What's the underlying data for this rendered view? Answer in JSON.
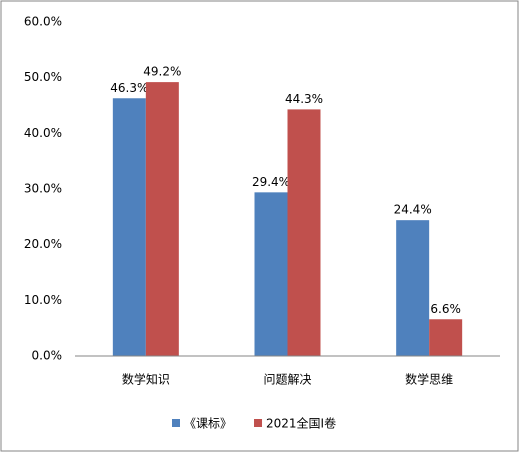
{
  "chart_data": {
    "type": "bar",
    "categories": [
      "数学知识",
      "问题解决",
      "数学思维"
    ],
    "series": [
      {
        "name": "《课标》",
        "color": "#4f81bd",
        "values": [
          46.3,
          29.4,
          24.4
        ],
        "value_labels": [
          "46.3%",
          "29.4%",
          "24.4%"
        ]
      },
      {
        "name": "2021全国Ⅰ卷",
        "color": "#c0504d",
        "values": [
          49.2,
          44.3,
          6.6
        ],
        "value_labels": [
          "49.2%",
          "44.3%",
          "6.6%"
        ]
      }
    ],
    "ylim": [
      0,
      60
    ],
    "yticks": [
      {
        "value": 0,
        "label": "0.0%"
      },
      {
        "value": 10,
        "label": "10.0%"
      },
      {
        "value": 20,
        "label": "20.0%"
      },
      {
        "value": 30,
        "label": "30.0%"
      },
      {
        "value": 40,
        "label": "40.0%"
      },
      {
        "value": 50,
        "label": "50.0%"
      },
      {
        "value": 60,
        "label": "60.0%"
      }
    ],
    "grid": false,
    "legend": "bottom"
  }
}
